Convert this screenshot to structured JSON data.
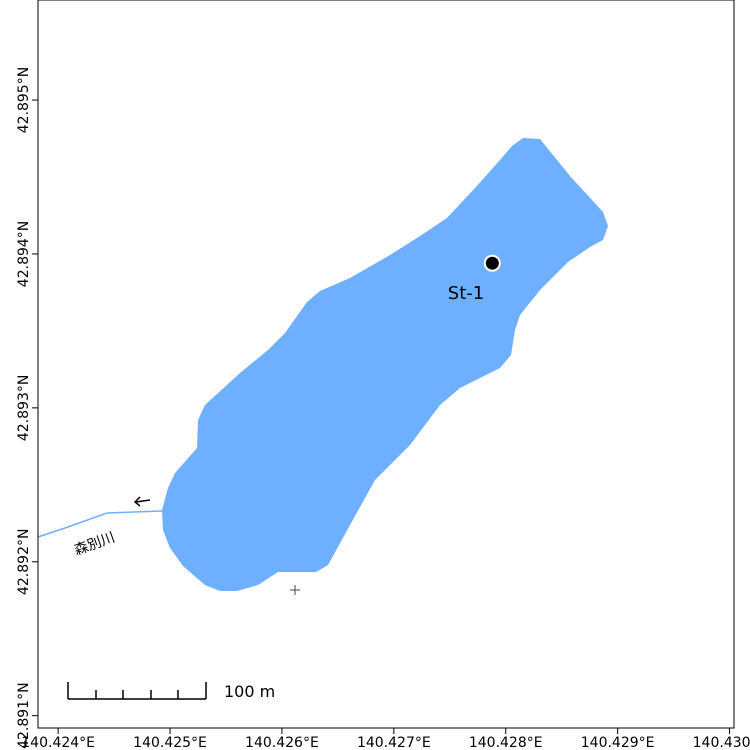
{
  "map": {
    "xlim": [
      140.42382,
      140.43004
    ],
    "ylim": [
      42.89092,
      42.89565
    ],
    "xticks": [
      {
        "value": 140.424,
        "label": "140.424°E"
      },
      {
        "value": 140.425,
        "label": "140.425°E"
      },
      {
        "value": 140.426,
        "label": "140.426°E"
      },
      {
        "value": 140.427,
        "label": "140.427°E"
      },
      {
        "value": 140.428,
        "label": "140.428°E"
      },
      {
        "value": 140.429,
        "label": "140.429°E"
      },
      {
        "value": 140.43,
        "label": "140.430°E"
      }
    ],
    "yticks": [
      {
        "value": 42.891,
        "label": "42.891°N"
      },
      {
        "value": 42.892,
        "label": "42.892°N"
      },
      {
        "value": 42.893,
        "label": "42.893°N"
      },
      {
        "value": 42.894,
        "label": "42.894°N"
      },
      {
        "value": 42.895,
        "label": "42.895°N"
      }
    ],
    "station": {
      "label": "St-1",
      "lon": 140.42788,
      "lat": 42.89394
    },
    "river": {
      "label": "森別川"
    },
    "scale_bar": {
      "label": "100 m"
    }
  }
}
